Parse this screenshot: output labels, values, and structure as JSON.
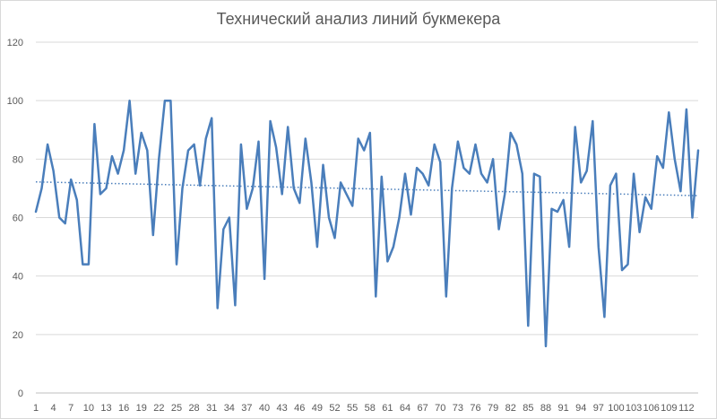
{
  "chart_data": {
    "type": "line",
    "title": "Технический анализ линий букмекера",
    "xlabel": "",
    "ylabel": "",
    "ylim": [
      0,
      120
    ],
    "yticks": [
      0,
      20,
      40,
      60,
      80,
      100,
      120
    ],
    "x_tick_labels": [
      "1",
      "4",
      "7",
      "10",
      "13",
      "16",
      "19",
      "22",
      "25",
      "28",
      "31",
      "34",
      "37",
      "40",
      "43",
      "46",
      "49",
      "52",
      "55",
      "58",
      "61",
      "64",
      "67",
      "70",
      "73",
      "76",
      "79",
      "82",
      "85",
      "88",
      "91",
      "94",
      "97",
      "100",
      "103",
      "106",
      "109",
      "112"
    ],
    "grid": "horizontal",
    "trendline": {
      "style": "dotted",
      "type": "linear",
      "start": 72.2,
      "end": 67.5
    },
    "colors": {
      "series": "#4a7ebb",
      "trendline": "#4a7ebb",
      "grid": "#d9d9d9",
      "text": "#595959"
    },
    "series": [
      {
        "values": [
          62,
          70,
          85,
          76,
          60,
          58,
          73,
          66,
          44,
          44,
          92,
          68,
          70,
          81,
          75,
          83,
          100,
          75,
          89,
          83,
          54,
          80,
          100,
          100,
          44,
          70,
          83,
          85,
          71,
          87,
          94,
          29,
          56,
          60,
          30,
          85,
          63,
          70,
          86,
          39,
          93,
          84,
          68,
          91,
          70,
          65,
          87,
          72,
          50,
          78,
          60,
          53,
          72,
          68,
          64,
          87,
          83,
          89,
          33,
          74,
          45,
          50,
          60,
          75,
          61,
          77,
          75,
          71,
          85,
          79,
          33,
          70,
          86,
          77,
          75,
          85,
          75,
          72,
          80,
          56,
          68,
          89,
          85,
          75,
          23,
          75,
          74,
          16,
          63,
          62,
          66,
          50,
          91,
          72,
          76,
          93,
          50,
          26,
          71,
          75,
          42,
          44,
          75,
          55,
          67,
          63,
          81,
          77,
          96,
          80,
          69,
          97,
          60,
          83
        ]
      }
    ]
  }
}
